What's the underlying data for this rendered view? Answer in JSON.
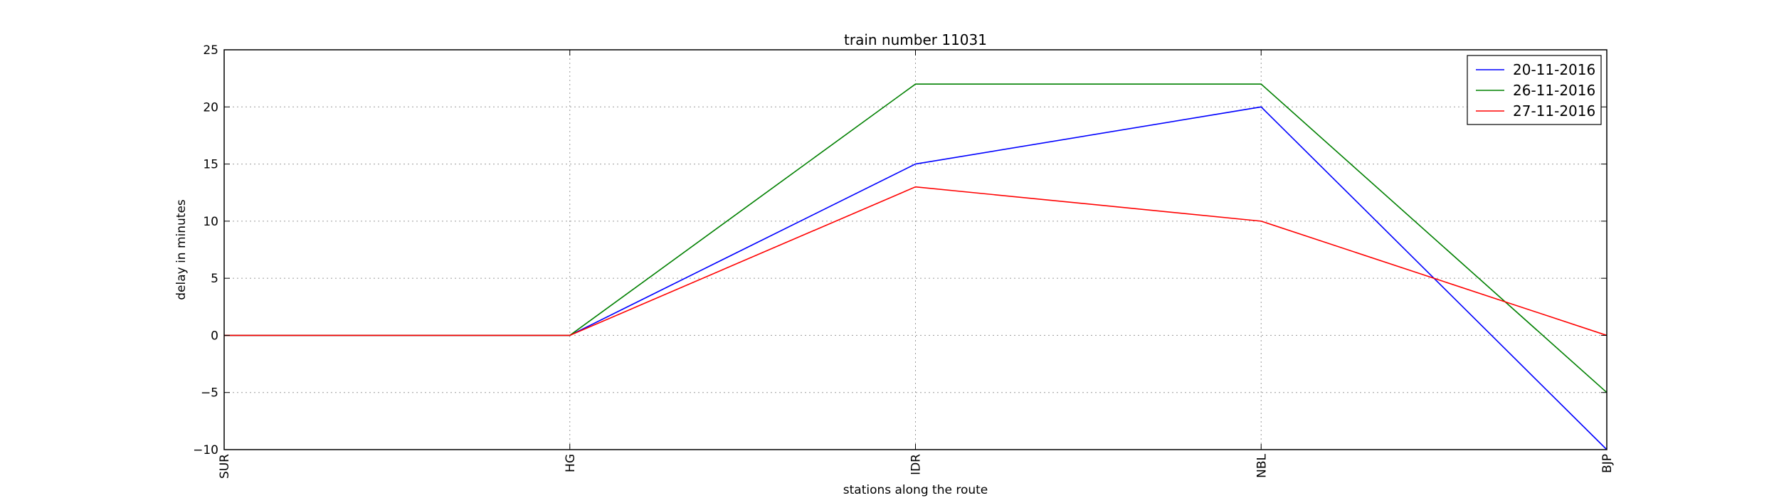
{
  "chart_data": {
    "type": "line",
    "title": "train number 11031",
    "xlabel": "stations along the route",
    "ylabel": "delay in minutes",
    "categories": [
      "SUR",
      "HG",
      "IDR",
      "NBL",
      "BJP"
    ],
    "ylim": [
      -10,
      25
    ],
    "yticks": [
      -10,
      -5,
      0,
      5,
      10,
      15,
      20,
      25
    ],
    "ytick_labels": [
      "−10",
      "−5",
      "0",
      "5",
      "10",
      "15",
      "20",
      "25"
    ],
    "grid": true,
    "legend_position": "top-right",
    "series": [
      {
        "name": "20-11-2016",
        "color": "#0000ff",
        "values": [
          0,
          0,
          15,
          20,
          -10
        ]
      },
      {
        "name": "26-11-2016",
        "color": "#008000",
        "values": [
          0,
          0,
          22,
          22,
          -5
        ]
      },
      {
        "name": "27-11-2016",
        "color": "#ff0000",
        "values": [
          0,
          0,
          13,
          10,
          0
        ]
      }
    ]
  }
}
